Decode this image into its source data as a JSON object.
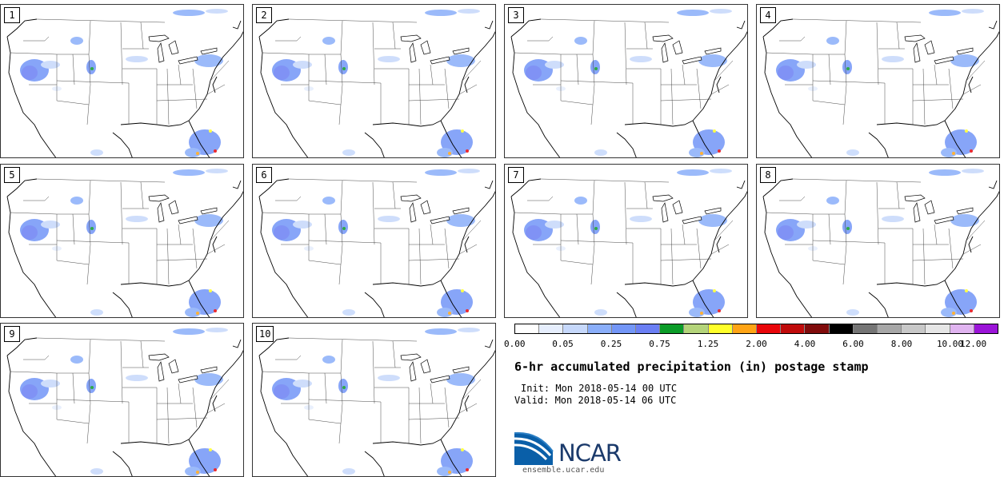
{
  "panels": [
    {
      "label": "1"
    },
    {
      "label": "2"
    },
    {
      "label": "3"
    },
    {
      "label": "4"
    },
    {
      "label": "5"
    },
    {
      "label": "6"
    },
    {
      "label": "7"
    },
    {
      "label": "8"
    },
    {
      "label": "9"
    },
    {
      "label": "10"
    }
  ],
  "colorbar": {
    "colors": [
      "#ffffff",
      "#e6eefd",
      "#c6d8fb",
      "#8aaefa",
      "#7396f7",
      "#6b7ff4",
      "#0b9c28",
      "#b4d47a",
      "#ffff2a",
      "#ffa415",
      "#e9060a",
      "#c00b0b",
      "#800b0b",
      "#000000",
      "#757575",
      "#a7a7a7",
      "#c8c8c8",
      "#e6e6e6",
      "#e0b4f0",
      "#9b14d8"
    ],
    "tick_labels": [
      "0.00",
      "0.05",
      "0.25",
      "0.75",
      "1.25",
      "2.00",
      "4.00",
      "6.00",
      "8.00",
      "10.00",
      "12.00"
    ]
  },
  "title": "6-hr accumulated precipitation (in) postage stamp",
  "init": "Init: Mon 2018-05-14 00 UTC",
  "valid": "Valid: Mon 2018-05-14 06 UTC",
  "logo": {
    "text": "NCAR",
    "url": "ensemble.ucar.edu"
  }
}
